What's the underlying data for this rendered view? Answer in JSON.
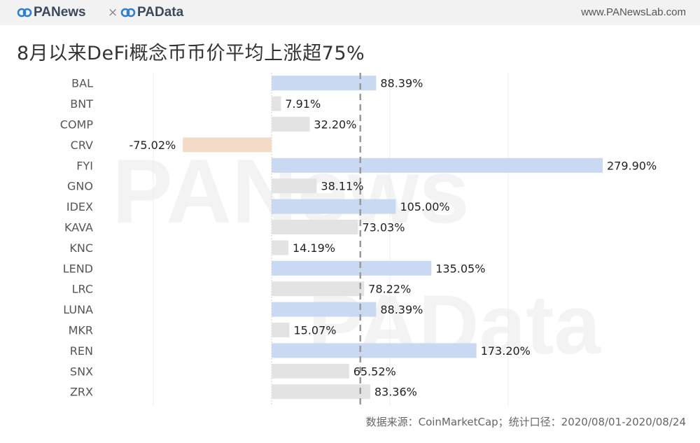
{
  "header": {
    "brand_left": "PANews",
    "separator": "×",
    "brand_right": "PAData",
    "site_url": "www.PANewsLab.com",
    "logo_color": "#2f7fd0"
  },
  "watermarks": [
    "PANews",
    "PAData"
  ],
  "chart_data": {
    "type": "bar",
    "orientation": "horizontal",
    "title": "8月以来DeFi概念币币价平均上涨超75%",
    "categories": [
      "BAL",
      "BNT",
      "COMP",
      "CRV",
      "FYI",
      "GNO",
      "IDEX",
      "KAVA",
      "KNC",
      "LEND",
      "LRC",
      "LUNA",
      "MKR",
      "REN",
      "SNX",
      "ZRX"
    ],
    "values": [
      88.39,
      7.91,
      32.2,
      -75.02,
      279.9,
      38.11,
      105.0,
      73.03,
      14.19,
      135.05,
      78.22,
      88.39,
      15.07,
      173.2,
      65.52,
      83.36
    ],
    "value_labels": [
      "88.39%",
      "7.91%",
      "32.20%",
      "-75.02%",
      "279.90%",
      "38.11%",
      "105.00%",
      "73.03%",
      "14.19%",
      "135.05%",
      "78.22%",
      "88.39%",
      "15.07%",
      "173.20%",
      "65.52%",
      "83.36%"
    ],
    "highlight": [
      "BAL",
      "FYI",
      "IDEX",
      "LEND",
      "LUNA",
      "REN"
    ],
    "reference_line": 75,
    "xlim": [
      -150,
      300
    ],
    "grid": true,
    "colors": {
      "highlight": "#c9d9f2",
      "normal": "#e3e3e3",
      "negative": "#f2dcc8",
      "reference": "#9a9a9a"
    }
  },
  "footer": {
    "source": "数据来源：CoinMarketCap；统计口径：2020/08/01-2020/08/24"
  }
}
